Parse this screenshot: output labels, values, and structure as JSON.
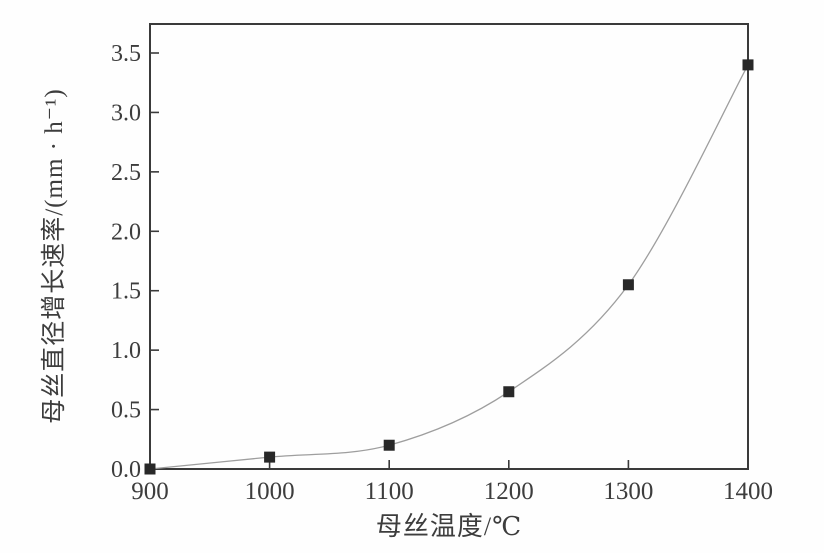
{
  "figure": {
    "background": "#fefefe"
  },
  "chart_data": {
    "type": "line",
    "title": "",
    "xlabel": "母丝温度/℃",
    "ylabel": "母丝直径增长速率/(mm · h⁻¹)",
    "x": [
      900,
      1000,
      1100,
      1200,
      1300,
      1400
    ],
    "values": [
      0.0,
      0.1,
      0.2,
      0.65,
      1.55,
      3.4
    ],
    "xlim": [
      900,
      1400
    ],
    "ylim": [
      0,
      3.5
    ],
    "xticks": [
      900,
      1000,
      1100,
      1200,
      1300,
      1400
    ],
    "yticks": [
      0.0,
      0.5,
      1.0,
      1.5,
      2.0,
      2.5,
      3.0,
      3.5
    ],
    "grid": false,
    "legend": "none",
    "marker": "filled-square",
    "colors": {
      "line": "#9e9e9e",
      "marker": "#282828",
      "axis": "#3a3a3a",
      "text": "#3d3d3d"
    }
  }
}
